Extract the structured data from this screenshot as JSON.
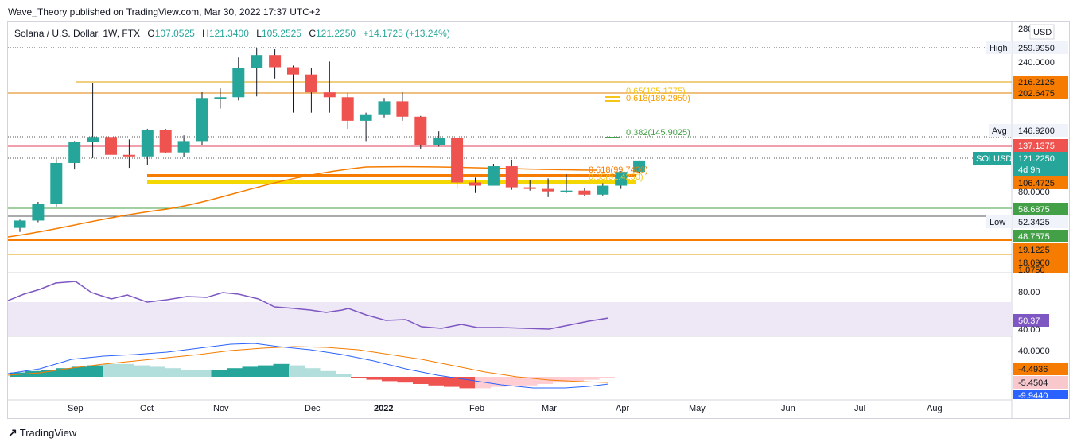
{
  "header": {
    "published": "Wave_Theory published on TradingView.com, Mar 30, 2022 17:37 UTC+2"
  },
  "legend": {
    "symbol": "Solana / U.S. Dollar, 1W, FTX",
    "open_label": "O",
    "open": "107.0525",
    "high_label": "H",
    "high": "121.3400",
    "low_label": "L",
    "low": "105.2525",
    "close_label": "C",
    "close": "121.2250",
    "change": "+14.1725 (+13.24%)"
  },
  "currency": "USD",
  "price_axis": {
    "top_partial": "280.0000",
    "ticks": [
      "240.0000",
      "80.0000"
    ],
    "high_label": "High",
    "high_value": "259.9950",
    "avg_label": "Avg",
    "avg_value": "146.9200",
    "low_label": "Low",
    "low_value": "52.3425",
    "level_216": "216.2125",
    "level_202": "202.6475",
    "level_137": "137.1375",
    "symbol_tag": "SOLUSD",
    "last_price": "121.2250",
    "countdown": "4d 9h",
    "level_106": "106.4725",
    "level_58": "58.6875",
    "level_48": "48.7575",
    "level_19": "19.1225",
    "level_18": "18.0900",
    "level_1": "1.0750"
  },
  "annotations": {
    "fib_0382": "0.382(145.9025)",
    "fib_0618": "0.618(189.2950)",
    "fib_065": "0.65(195.1775)",
    "fib_0618_low": "0.618(99.7400)",
    "fib_065_low": "0.65(91.4250)"
  },
  "rsi": {
    "tick": "80.00",
    "tick_low": "40.00",
    "value": "50.37"
  },
  "macd": {
    "tick": "40.0000",
    "v1": "-4.4936",
    "v2": "-5.4504",
    "v3": "-9.9440"
  },
  "time_axis": [
    "Sep",
    "Oct",
    "Nov",
    "Dec",
    "2022",
    "Feb",
    "Mar",
    "Apr",
    "May",
    "Jun",
    "Jul",
    "Aug"
  ],
  "footer": {
    "brand": "TradingView"
  },
  "colors": {
    "up": "#26a69a",
    "down": "#ef5350",
    "orange": "#f57c00",
    "gold": "#f5c518",
    "rsi": "#7e57c2",
    "macd": "#2962ff"
  },
  "chart_data": {
    "type": "candlestick",
    "title": "Solana / U.S. Dollar, 1W, FTX",
    "ylabel": "USD",
    "candles": [
      {
        "o": 38,
        "h": 48,
        "l": 33,
        "c": 47
      },
      {
        "o": 47,
        "h": 70,
        "l": 45,
        "c": 68
      },
      {
        "o": 68,
        "h": 125,
        "l": 64,
        "c": 118
      },
      {
        "o": 118,
        "h": 145,
        "l": 110,
        "c": 144
      },
      {
        "o": 144,
        "h": 216,
        "l": 124,
        "c": 150
      },
      {
        "o": 150,
        "h": 152,
        "l": 120,
        "c": 128
      },
      {
        "o": 128,
        "h": 147,
        "l": 112,
        "c": 126
      },
      {
        "o": 126,
        "h": 160,
        "l": 115,
        "c": 159
      },
      {
        "o": 159,
        "h": 160,
        "l": 130,
        "c": 131
      },
      {
        "o": 131,
        "h": 152,
        "l": 125,
        "c": 145
      },
      {
        "o": 145,
        "h": 205,
        "l": 140,
        "c": 198
      },
      {
        "o": 198,
        "h": 210,
        "l": 185,
        "c": 199
      },
      {
        "o": 199,
        "h": 248,
        "l": 195,
        "c": 235
      },
      {
        "o": 235,
        "h": 260,
        "l": 200,
        "c": 251
      },
      {
        "o": 251,
        "h": 258,
        "l": 222,
        "c": 236
      },
      {
        "o": 236,
        "h": 238,
        "l": 180,
        "c": 227
      },
      {
        "o": 227,
        "h": 235,
        "l": 180,
        "c": 205
      },
      {
        "o": 205,
        "h": 243,
        "l": 180,
        "c": 199
      },
      {
        "o": 199,
        "h": 204,
        "l": 160,
        "c": 170
      },
      {
        "o": 170,
        "h": 180,
        "l": 145,
        "c": 177
      },
      {
        "o": 177,
        "h": 198,
        "l": 174,
        "c": 194
      },
      {
        "o": 194,
        "h": 205,
        "l": 170,
        "c": 175
      },
      {
        "o": 175,
        "h": 176,
        "l": 135,
        "c": 140
      },
      {
        "o": 140,
        "h": 157,
        "l": 138,
        "c": 149
      },
      {
        "o": 149,
        "h": 150,
        "l": 86,
        "c": 94
      },
      {
        "o": 94,
        "h": 100,
        "l": 81,
        "c": 90
      },
      {
        "o": 90,
        "h": 117,
        "l": 90,
        "c": 114
      },
      {
        "o": 114,
        "h": 122,
        "l": 85,
        "c": 88
      },
      {
        "o": 88,
        "h": 97,
        "l": 84,
        "c": 86
      },
      {
        "o": 86,
        "h": 99,
        "l": 76,
        "c": 83
      },
      {
        "o": 83,
        "h": 104,
        "l": 81,
        "c": 84
      },
      {
        "o": 84,
        "h": 87,
        "l": 77,
        "c": 79
      },
      {
        "o": 79,
        "h": 93,
        "l": 78,
        "c": 90
      },
      {
        "o": 90,
        "h": 108,
        "l": 86,
        "c": 107
      },
      {
        "o": 107,
        "h": 121,
        "l": 105,
        "c": 121
      }
    ]
  }
}
